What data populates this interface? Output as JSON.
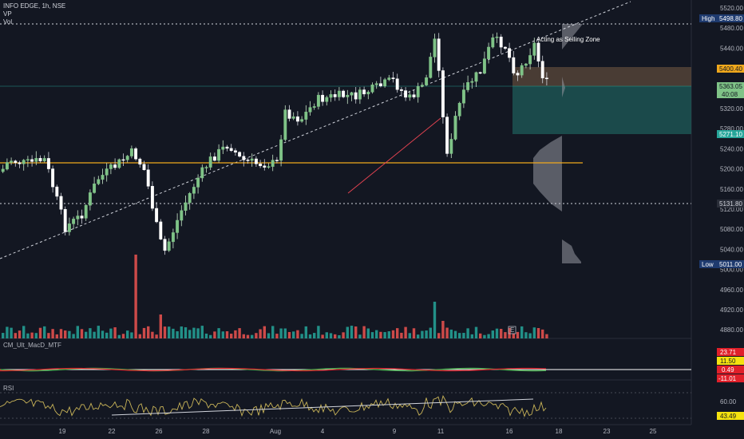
{
  "header": {
    "symbol_line": "INFO EDGE, 1h, NSE",
    "vp_label": "VP",
    "vol_label": "Vol"
  },
  "annotation": "Acting as Selling Zone",
  "price_axis": {
    "ticks": [
      "5520.00",
      "5480.00",
      "5440.00",
      "5400.00",
      "5360.00",
      "5320.00",
      "5280.00",
      "5240.00",
      "5200.00",
      "5160.00",
      "5120.00",
      "5080.00",
      "5040.00",
      "5000.00",
      "4960.00",
      "4920.00",
      "4880.00"
    ],
    "high_label": "High",
    "high_value": "5498.80",
    "low_label": "Low",
    "low_value": "5011.00",
    "zone_top_value": "5400.40",
    "last_price": "5363.05",
    "countdown": "40:08",
    "zone_bottom_value": "5271.10",
    "support_value": "5131.80"
  },
  "time_axis": {
    "labels": [
      "19",
      "22",
      "26",
      "28",
      "Aug",
      "4",
      "9",
      "11",
      "16",
      "18",
      "23",
      "25"
    ]
  },
  "macd": {
    "title": "CM_Ult_MacD_MTF",
    "values": [
      "23.71",
      "11.50",
      "0.49",
      "-11.01"
    ]
  },
  "rsi": {
    "title": "RSI",
    "ticks": [
      "60.00"
    ],
    "value": "43.49"
  },
  "colors": {
    "bg": "#131722",
    "up": "#ffffff",
    "down": "#1b1e26",
    "up_vol": "#26a69a",
    "down_vol": "#ef5350",
    "zone_sell": "#5c4a3b",
    "zone_buy": "#1f5c5a",
    "orange_line": "#f0a81c",
    "rsi_line": "#c9b458"
  }
}
